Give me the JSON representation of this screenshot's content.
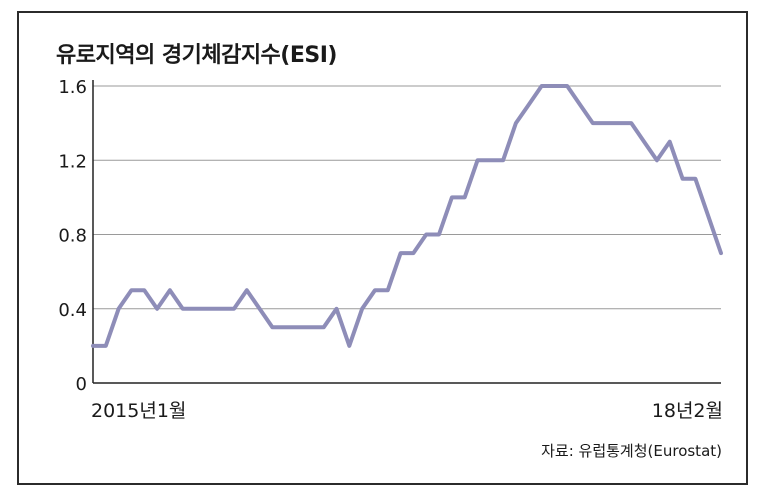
{
  "title": "유로지역의 경기체감지수(ESI)",
  "source": "자료: 유럽통계청(Eurostat)",
  "colors": {
    "line": "#8e8db8",
    "grid": "#9a9a9a",
    "axis": "#222222"
  },
  "chart_data": {
    "type": "line",
    "title": "유로지역의 경기체감지수(ESI)",
    "x_start_label": "2015년1월",
    "x_end_label": "18년2월",
    "x_tick_labels": [
      "2015년1월",
      "18년2월"
    ],
    "y_ticks": [
      0,
      0.4,
      0.8,
      1.2,
      1.6
    ],
    "y_tick_labels": [
      "0",
      "0.4",
      "0.8",
      "1.2",
      "1.6"
    ],
    "ylim": [
      0,
      1.6
    ],
    "grid": true,
    "series": [
      {
        "values": [
          0.2,
          0.2,
          0.4,
          0.5,
          0.5,
          0.4,
          0.5,
          0.4,
          0.4,
          0.4,
          0.4,
          0.4,
          0.5,
          0.4,
          0.3,
          0.3,
          0.3,
          0.3,
          0.3,
          0.4,
          0.2,
          0.4,
          0.5,
          0.5,
          0.7,
          0.7,
          0.8,
          0.8,
          1.0,
          1.0,
          1.2,
          1.2,
          1.2,
          1.4,
          1.5,
          1.6,
          1.6,
          1.6,
          1.5,
          1.4,
          1.4,
          1.4,
          1.4,
          1.3,
          1.2,
          1.3,
          1.1,
          1.1,
          0.9,
          0.7
        ]
      }
    ]
  }
}
